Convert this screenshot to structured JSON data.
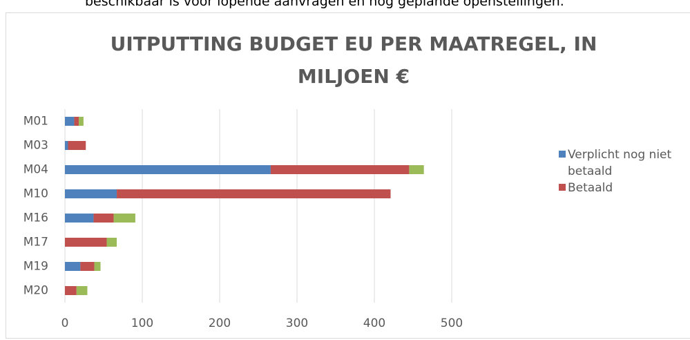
{
  "intro_text": "beschikbaar is voor lopende aanvragen en nog geplande openstellingen.",
  "chart_data": {
    "type": "stacked_bar_horizontal",
    "title": "UITPUTTING BUDGET EU PER MAATREGEL, IN MILJOEN €",
    "categories": [
      "M01",
      "M03",
      "M04",
      "M10",
      "M16",
      "M17",
      "M19",
      "M20"
    ],
    "series": [
      {
        "name": "Verplicht nog niet betaald",
        "color": "#4f81bd",
        "values": [
          12,
          4,
          266,
          67,
          37,
          0,
          20,
          0
        ]
      },
      {
        "name": "Betaald",
        "color": "#c0504d",
        "values": [
          6,
          23,
          179,
          354,
          26,
          54,
          18,
          15
        ]
      },
      {
        "color": "#9bbb59",
        "values": [
          6,
          0,
          19,
          0,
          28,
          13,
          8,
          14
        ]
      }
    ],
    "xlim": [
      0,
      500
    ],
    "xticks": [
      0,
      100,
      200,
      300,
      400,
      500
    ],
    "grid": true,
    "legend": "right"
  }
}
